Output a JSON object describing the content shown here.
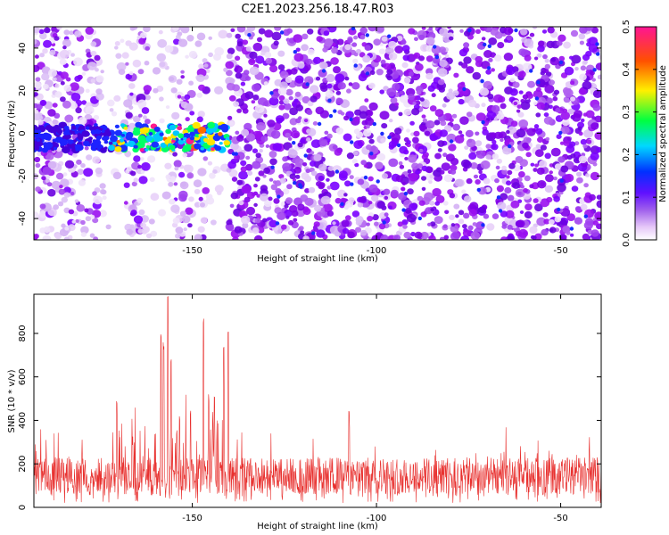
{
  "title": "C2E1.2023.256.18.47.R03",
  "chart_data": [
    {
      "type": "heatmap",
      "xlabel": "Height of straight line (km)",
      "ylabel": "Frequency (Hz)",
      "xlim": [
        -193,
        -39
      ],
      "ylim": [
        -50,
        50
      ],
      "xticks": [
        -150,
        -100,
        -50
      ],
      "yticks": [
        -40,
        -20,
        0,
        20,
        40
      ],
      "colorbar": {
        "label": "Normalized spectral amplitude",
        "range": [
          0,
          0.5
        ],
        "ticks": [
          0.0,
          0.1,
          0.2,
          0.3,
          0.4,
          0.5
        ],
        "colormap": [
          "#ffffff",
          "#e6c8f8",
          "#8a2be2",
          "#0000ff",
          "#00e5ff",
          "#00ff00",
          "#ffff00",
          "#ff6a00",
          "#ff1493"
        ]
      },
      "signal_band": {
        "x": [
          -193,
          -140
        ],
        "y": [
          -8,
          4
        ]
      },
      "quiet_columns": [
        [
          -175,
          -168
        ],
        [
          -162,
          -155
        ],
        [
          -150,
          -148
        ],
        [
          -146,
          -140
        ]
      ],
      "noise_start": -140
    },
    {
      "type": "line",
      "xlabel": "Height of straight line (km)",
      "ylabel": "SNR (10 * v/v)",
      "xlim": [
        -193,
        -39
      ],
      "ylim": [
        0,
        980
      ],
      "xticks": [
        -150,
        -100,
        -50
      ],
      "yticks": [
        0,
        200,
        400,
        600,
        800
      ],
      "color": "#e8312f",
      "baseline": 130,
      "noise_range": [
        60,
        230
      ],
      "peaks": [
        {
          "x": -170.5,
          "y": 500
        },
        {
          "x": -158.5,
          "y": 830
        },
        {
          "x": -157.8,
          "y": 760
        },
        {
          "x": -156.6,
          "y": 980
        },
        {
          "x": -155.8,
          "y": 700
        },
        {
          "x": -153.5,
          "y": 420
        },
        {
          "x": -150.5,
          "y": 460
        },
        {
          "x": -147.0,
          "y": 900
        },
        {
          "x": -145.5,
          "y": 520
        },
        {
          "x": -144.0,
          "y": 510
        },
        {
          "x": -141.5,
          "y": 780
        },
        {
          "x": -140.3,
          "y": 820
        },
        {
          "x": -107.5,
          "y": 460
        }
      ]
    }
  ]
}
